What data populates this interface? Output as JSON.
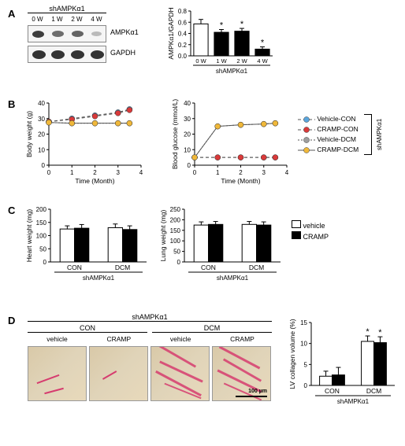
{
  "panel_a": {
    "label": "A",
    "header": "shAMPKα1",
    "lanes": [
      "0 W",
      "1 W",
      "2 W",
      "4 W"
    ],
    "rows": [
      "AMPKα1",
      "GAPDH"
    ],
    "chart": {
      "ylabel": "AMPKα1/GAPDH",
      "xlabel": "shAMPKα1",
      "categories": [
        "0 W",
        "1 W",
        "2 W",
        "4 W"
      ],
      "values": [
        0.57,
        0.42,
        0.44,
        0.12
      ],
      "errors": [
        0.08,
        0.05,
        0.05,
        0.04
      ],
      "sig": [
        "",
        "*",
        "*",
        "*"
      ],
      "ylim": [
        0,
        0.8
      ],
      "ytick_step": 0.2,
      "bar_color": "#000000",
      "first_bar_color": "#ffffff"
    }
  },
  "panel_b": {
    "label": "B",
    "group_label": "shAMPKα1",
    "legend": [
      {
        "name": "Vehicle-CON",
        "color": "#5aa6dd",
        "dash": "4,3"
      },
      {
        "name": "CRAMP-CON",
        "color": "#d93a3a",
        "dash": "4,3"
      },
      {
        "name": "Vehicle-DCM",
        "color": "#9e9e9e",
        "dash": "2,2"
      },
      {
        "name": "CRAMP-DCM",
        "color": "#f0b83a",
        "dash": "0"
      }
    ],
    "left": {
      "ylabel": "Body weight (g)",
      "xlabel": "Time (Month)",
      "xlim": [
        0,
        4
      ],
      "ylim": [
        0,
        40
      ],
      "xticks": [
        0,
        1,
        2,
        3,
        4
      ],
      "yticks": [
        0,
        10,
        20,
        30,
        40
      ],
      "series": [
        {
          "name": "Vehicle-CON",
          "color": "#5aa6dd",
          "dash": "4,3",
          "pts": [
            [
              0,
              28
            ],
            [
              1,
              30
            ],
            [
              2,
              32
            ],
            [
              3,
              34
            ],
            [
              3.5,
              36
            ]
          ]
        },
        {
          "name": "CRAMP-CON",
          "color": "#d93a3a",
          "dash": "4,3",
          "pts": [
            [
              0,
              28
            ],
            [
              1,
              29.5
            ],
            [
              2,
              31.5
            ],
            [
              3,
              33.5
            ],
            [
              3.5,
              35.5
            ]
          ]
        },
        {
          "name": "Vehicle-DCM",
          "color": "#9e9e9e",
          "dash": "2,2",
          "pts": [
            [
              0,
              27.5
            ],
            [
              1,
              27
            ],
            [
              2,
              27
            ],
            [
              3,
              27
            ],
            [
              3.5,
              27
            ]
          ]
        },
        {
          "name": "CRAMP-DCM",
          "color": "#f0b83a",
          "dash": "0",
          "pts": [
            [
              0,
              27.5
            ],
            [
              1,
              27
            ],
            [
              2,
              27
            ],
            [
              3,
              27
            ],
            [
              3.5,
              27
            ]
          ]
        }
      ]
    },
    "right": {
      "ylabel": "Blood glucose (mmol/L)",
      "xlabel": "Time (Month)",
      "xlim": [
        0,
        4
      ],
      "ylim": [
        0,
        40
      ],
      "xticks": [
        0,
        1,
        2,
        3,
        4
      ],
      "yticks": [
        0,
        10,
        20,
        30,
        40
      ],
      "series": [
        {
          "name": "Vehicle-CON",
          "color": "#5aa6dd",
          "dash": "4,3",
          "pts": [
            [
              0,
              5
            ],
            [
              1,
              5
            ],
            [
              2,
              5
            ],
            [
              3,
              5
            ],
            [
              3.5,
              5
            ]
          ]
        },
        {
          "name": "CRAMP-CON",
          "color": "#d93a3a",
          "dash": "4,3",
          "pts": [
            [
              0,
              5
            ],
            [
              1,
              5
            ],
            [
              2,
              5
            ],
            [
              3,
              5
            ],
            [
              3.5,
              5
            ]
          ]
        },
        {
          "name": "Vehicle-DCM",
          "color": "#9e9e9e",
          "dash": "2,2",
          "pts": [
            [
              0,
              5
            ],
            [
              1,
              25
            ],
            [
              2,
              26
            ],
            [
              3,
              26.5
            ],
            [
              3.5,
              27
            ]
          ]
        },
        {
          "name": "CRAMP-DCM",
          "color": "#f0b83a",
          "dash": "0",
          "pts": [
            [
              0,
              5
            ],
            [
              1,
              25
            ],
            [
              2,
              26
            ],
            [
              3,
              26.5
            ],
            [
              3.5,
              27
            ]
          ]
        }
      ]
    }
  },
  "panel_c": {
    "label": "C",
    "xlabel": "shAMPKα1",
    "legend": [
      {
        "name": "vehicle",
        "color": "#ffffff"
      },
      {
        "name": "CRAMP",
        "color": "#000000"
      }
    ],
    "left": {
      "ylabel": "Heart weight (mg)",
      "ylim": [
        0,
        200
      ],
      "ytick_step": 50,
      "groups": [
        "CON",
        "DCM"
      ],
      "values": [
        [
          125,
          128
        ],
        [
          130,
          123
        ]
      ],
      "errors": [
        [
          12,
          14
        ],
        [
          14,
          14
        ]
      ]
    },
    "right": {
      "ylabel": "Lung weight (mg)",
      "ylim": [
        0,
        250
      ],
      "ytick_step": 50,
      "groups": [
        "CON",
        "DCM"
      ],
      "values": [
        [
          175,
          178
        ],
        [
          178,
          175
        ]
      ],
      "errors": [
        [
          15,
          14
        ],
        [
          14,
          15
        ]
      ]
    }
  },
  "panel_d": {
    "label": "D",
    "top_header": "shAMPKα1",
    "groups": [
      "CON",
      "DCM"
    ],
    "treatments": [
      "vehicle",
      "CRAMP",
      "vehicle",
      "CRAMP"
    ],
    "scalebar": "100 µm",
    "chart": {
      "ylabel": "LV collagen volume (%)",
      "xlabel": "shAMPKα1",
      "ylim": [
        0,
        15
      ],
      "ytick_step": 5,
      "groups": [
        "CON",
        "DCM"
      ],
      "values": [
        [
          2.2,
          2.5
        ],
        [
          10.5,
          10.2
        ]
      ],
      "errors": [
        [
          1.2,
          1.8
        ],
        [
          1.3,
          1.4
        ]
      ],
      "sig": [
        [
          "",
          ""
        ],
        [
          "*",
          "*"
        ]
      ]
    }
  }
}
